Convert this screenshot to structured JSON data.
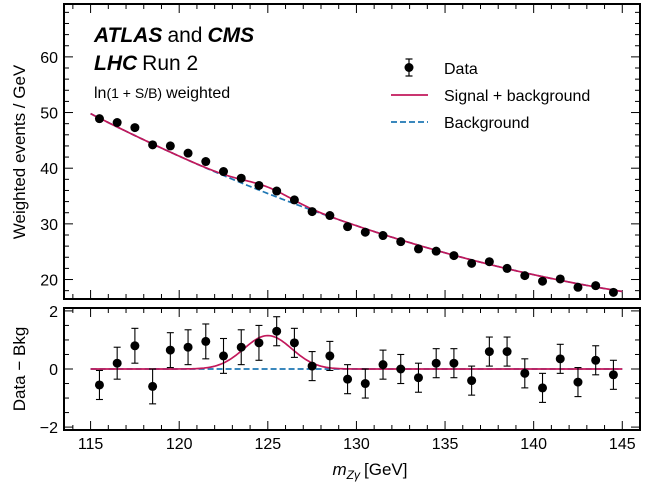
{
  "chart_data": {
    "type": "scatter",
    "x": [
      115.5,
      116.5,
      117.5,
      118.5,
      119.5,
      120.5,
      121.5,
      122.5,
      123.5,
      124.5,
      125.5,
      126.5,
      127.5,
      128.5,
      129.5,
      130.5,
      131.5,
      132.5,
      133.5,
      134.5,
      135.5,
      136.5,
      137.5,
      138.5,
      139.5,
      140.5,
      141.5,
      142.5,
      143.5,
      144.5
    ],
    "annotations": {
      "experiment_bold1": "ATLAS",
      "experiment_joiner": "and",
      "experiment_bold2": "CMS",
      "machine_bold": "LHC",
      "machine_text": "Run 2",
      "weight_fn": "ln",
      "weight_arg": "(1 + S/B)",
      "weight_word": "weighted"
    },
    "legend": {
      "position": "top-right",
      "data": "Data",
      "signal": "Signal + background",
      "background": "Background"
    },
    "xlabel_var": "m",
    "xlabel_sub": "Zγ",
    "xlabel_unit": "[GeV]",
    "xlim": [
      113.5,
      146
    ],
    "xticks": [
      "115",
      "120",
      "125",
      "130",
      "135",
      "140",
      "145"
    ],
    "colors": {
      "signal": "#c2185b",
      "background": "#1f77b4",
      "data": "#000000"
    },
    "panels": [
      {
        "ylabel": "Weighted events / GeV",
        "ylim": [
          16.5,
          69.5
        ],
        "yticks": [
          "20",
          "30",
          "40",
          "50",
          "60"
        ],
        "values": [
          48.9,
          48.2,
          47.3,
          44.2,
          44.0,
          42.7,
          41.2,
          39.4,
          38.2,
          36.9,
          35.9,
          34.3,
          32.2,
          31.5,
          29.5,
          28.5,
          27.9,
          26.8,
          25.5,
          25.1,
          24.3,
          22.9,
          23.2,
          22.0,
          20.7,
          19.7,
          20.1,
          18.6,
          18.9,
          17.7
        ],
        "errors": [
          0.4,
          0.4,
          0.4,
          0.4,
          0.4,
          0.4,
          0.4,
          0.4,
          0.4,
          0.4,
          0.4,
          0.4,
          0.4,
          0.4,
          0.4,
          0.4,
          0.4,
          0.4,
          0.4,
          0.4,
          0.4,
          0.4,
          0.4,
          0.4,
          0.4,
          0.4,
          0.4,
          0.4,
          0.4,
          0.4
        ]
      },
      {
        "ylabel": "Data − Bkg",
        "ylim": [
          -2.1,
          2.1
        ],
        "yticks": [
          "−2",
          "0",
          "2"
        ],
        "values": [
          -0.55,
          0.2,
          0.8,
          -0.6,
          0.65,
          0.75,
          0.95,
          0.45,
          0.75,
          0.9,
          1.3,
          0.9,
          0.1,
          0.45,
          -0.35,
          -0.5,
          0.15,
          0.0,
          -0.3,
          0.2,
          0.2,
          -0.4,
          0.6,
          0.6,
          -0.15,
          -0.65,
          0.35,
          -0.45,
          0.3,
          -0.2
        ],
        "errors": [
          0.5,
          0.55,
          0.6,
          0.6,
          0.6,
          0.6,
          0.6,
          0.6,
          0.6,
          0.6,
          0.5,
          0.5,
          0.5,
          0.5,
          0.5,
          0.5,
          0.5,
          0.5,
          0.5,
          0.5,
          0.5,
          0.5,
          0.5,
          0.5,
          0.5,
          0.5,
          0.5,
          0.5,
          0.5,
          0.5
        ]
      }
    ]
  }
}
